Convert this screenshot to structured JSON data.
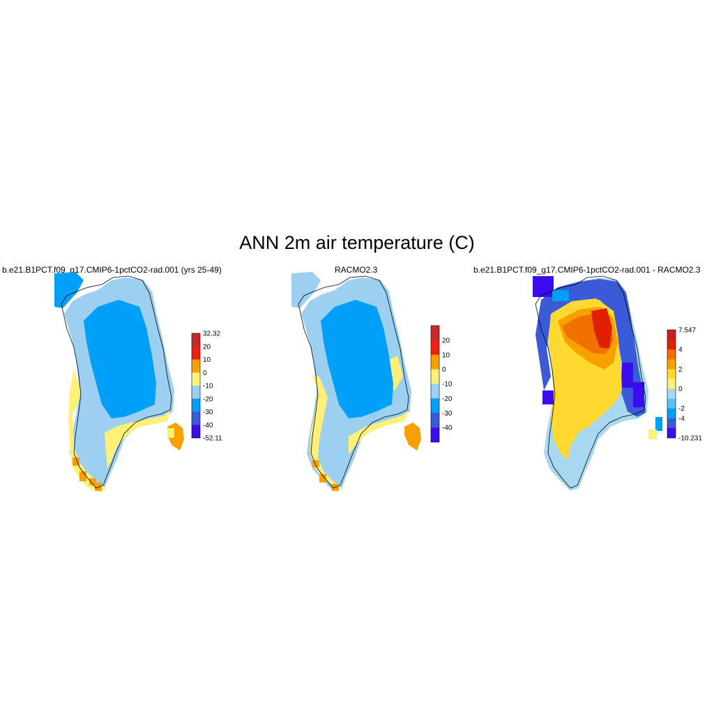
{
  "title": "ANN 2m air temperature (C)",
  "colors": {
    "c_n52": "#3b0cf0",
    "c_n40": "#3a5ad8",
    "c_n30": "#00a0f8",
    "c_n20": "#9ccff0",
    "c_n10": "#fff078",
    "c_0": "#f8a000",
    "c_10": "#f02010",
    "c_20": "#c82828",
    "d_n10": "#3b0cf0",
    "d_n4": "#3a5ad8",
    "d_n2": "#00a0f8",
    "d_n1": "#5cc0f0",
    "d_0": "#a8d8f0",
    "d_1": "#fff078",
    "d_2": "#ffd830",
    "d_3": "#f8a000",
    "d_4": "#f07000",
    "d_6": "#e02000",
    "d_7": "#c81e1e"
  },
  "panels": [
    {
      "title": "b.e21.B1PCT.f09_g17.CMIP6-1pctCO2-rad.001 (yrs 25-49)",
      "colorbar": {
        "labels": [
          "32.32",
          "20",
          "10",
          "0",
          "-10",
          "-20",
          "-30",
          "-40",
          "-52.11"
        ]
      }
    },
    {
      "title": "RACMO2.3",
      "colorbar": {
        "labels": [
          "20",
          "10",
          "0",
          "-10",
          "-20",
          "-30",
          "-40"
        ]
      }
    },
    {
      "title": "b.e21.B1PCT.f09_g17.CMIP6-1pctCO2-rad.001 - RACMO2.3",
      "colorbar": {
        "labels": [
          "7.547",
          "4",
          "2",
          "0",
          "-2",
          "-4",
          "-10.231"
        ]
      }
    }
  ]
}
